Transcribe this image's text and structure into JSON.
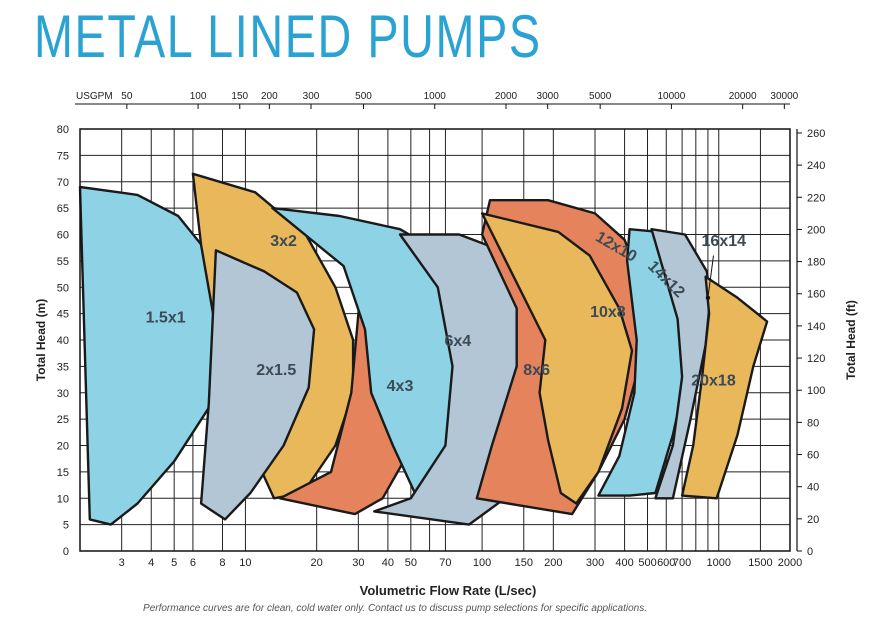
{
  "title": "METAL LINED PUMPS",
  "footnote": "Performance curves are for clean, cold water only. Contact us to discuss pump selections for specific applications.",
  "chart_data": {
    "type": "area",
    "x_scale": "log",
    "xlabel": "Volumetric Flow Rate (L/sec)",
    "ylabel": "Total Head (m)",
    "y2label": "Total Head (ft)",
    "xlim": [
      2,
      2000
    ],
    "ylim": [
      0,
      80
    ],
    "x_ticks": [
      3,
      4,
      5,
      6,
      8,
      10,
      20,
      30,
      40,
      50,
      70,
      100,
      150,
      200,
      300,
      400,
      500,
      600,
      700,
      1000,
      1500,
      2000
    ],
    "y_ticks": [
      0,
      5,
      10,
      15,
      20,
      25,
      30,
      35,
      40,
      45,
      50,
      55,
      60,
      65,
      70,
      75,
      80
    ],
    "top_axis_label": "USGPM",
    "top_ticks": [
      50,
      100,
      150,
      200,
      300,
      500,
      1000,
      2000,
      3000,
      5000,
      10000,
      20000,
      30000
    ],
    "top_ticks_lps_factor": 0.0630902,
    "right_ticks_ft": [
      0,
      20,
      40,
      60,
      80,
      100,
      120,
      140,
      160,
      180,
      200,
      220,
      240,
      260
    ],
    "ft_per_m": 3.28084,
    "colors": {
      "blue": "#8dd3e5",
      "grey": "#b3c6d5",
      "yellow": "#e8b85a",
      "orange": "#e5845c",
      "label": "#3c4a55"
    },
    "series": [
      {
        "name": "1.5x1",
        "color": "blue",
        "label_at": [
          4.6,
          44.5
        ],
        "points": [
          [
            2,
            69
          ],
          [
            3.5,
            67.5
          ],
          [
            5.2,
            63.5
          ],
          [
            6.8,
            57
          ],
          [
            8.6,
            51
          ],
          [
            10.2,
            46
          ],
          [
            9.2,
            38
          ],
          [
            7.2,
            28
          ],
          [
            5.0,
            17
          ],
          [
            3.5,
            9
          ],
          [
            2.7,
            5
          ],
          [
            2.2,
            6
          ],
          [
            2,
            69
          ]
        ]
      },
      {
        "name": "3x2",
        "color": "yellow",
        "label_at": [
          14.5,
          59
        ],
        "points": [
          [
            6,
            71.5
          ],
          [
            11,
            68
          ],
          [
            18,
            60
          ],
          [
            24,
            50
          ],
          [
            28.5,
            40
          ],
          [
            28.5,
            30
          ],
          [
            24,
            20
          ],
          [
            17.5,
            11
          ],
          [
            13.2,
            10
          ],
          [
            10.2,
            21
          ],
          [
            7.7,
            39
          ],
          [
            6.5,
            58
          ],
          [
            6,
            71.5
          ]
        ]
      },
      {
        "name": "2x1.5",
        "color": "grey",
        "label_at": [
          13.5,
          34.5
        ],
        "points": [
          [
            7.5,
            57
          ],
          [
            12,
            53
          ],
          [
            16.5,
            49
          ],
          [
            19.5,
            42
          ],
          [
            18.5,
            31
          ],
          [
            14.5,
            20
          ],
          [
            10.5,
            11
          ],
          [
            8.2,
            6
          ],
          [
            6.5,
            9
          ],
          [
            7.0,
            28
          ],
          [
            7.5,
            57
          ]
        ]
      },
      {
        "name": "4x3",
        "color": "orange",
        "label_at": [
          45,
          31.5
        ],
        "points": [
          [
            31,
            52
          ],
          [
            40,
            50
          ],
          [
            48,
            46.5
          ],
          [
            55,
            41
          ],
          [
            55,
            27
          ],
          [
            48,
            18
          ],
          [
            38,
            10
          ],
          [
            29,
            7
          ],
          [
            14,
            10
          ],
          [
            23,
            15
          ],
          [
            28,
            30
          ],
          [
            31,
            52
          ]
        ]
      },
      {
        "name": "6x4",
        "color": "blue",
        "label_at": [
          79,
          40
        ],
        "points": [
          [
            13,
            65
          ],
          [
            25,
            63.5
          ],
          [
            45,
            61
          ],
          [
            64,
            57
          ],
          [
            85,
            51
          ],
          [
            110,
            42
          ],
          [
            102,
            30
          ],
          [
            88,
            20
          ],
          [
            73,
            10.5
          ],
          [
            52,
            11
          ],
          [
            42,
            20
          ],
          [
            34,
            30
          ],
          [
            32,
            42
          ],
          [
            26,
            54
          ],
          [
            13,
            65
          ]
        ]
      },
      {
        "name": "8x6",
        "color": "grey",
        "label_at": [
          170,
          34.5
        ],
        "points": [
          [
            45,
            60
          ],
          [
            80,
            60
          ],
          [
            120,
            57
          ],
          [
            160,
            52
          ],
          [
            200,
            47
          ],
          [
            230,
            40
          ],
          [
            210,
            30
          ],
          [
            170,
            20
          ],
          [
            125,
            10
          ],
          [
            88,
            5
          ],
          [
            35,
            7.5
          ],
          [
            50,
            10
          ],
          [
            70,
            20
          ],
          [
            75,
            35
          ],
          [
            65,
            50
          ],
          [
            45,
            60
          ]
        ]
      },
      {
        "name": "12x10",
        "color": "orange",
        "label_at": [
          360,
          58
        ],
        "points": [
          [
            108,
            66.5
          ],
          [
            190,
            66.5
          ],
          [
            300,
            64
          ],
          [
            400,
            59
          ],
          [
            490,
            48.5
          ],
          [
            480,
            38
          ],
          [
            400,
            25
          ],
          [
            310,
            15
          ],
          [
            240,
            7
          ],
          [
            95,
            10
          ],
          [
            110,
            20
          ],
          [
            140,
            35
          ],
          [
            140,
            46
          ],
          [
            100,
            60
          ],
          [
            108,
            66.5
          ]
        ]
      },
      {
        "name": "10x8",
        "color": "yellow",
        "label_at": [
          340,
          45.5
        ],
        "points": [
          [
            100,
            64
          ],
          [
            210,
            60.5
          ],
          [
            285,
            56
          ],
          [
            380,
            46
          ],
          [
            430,
            38
          ],
          [
            390,
            27
          ],
          [
            310,
            15
          ],
          [
            250,
            9
          ],
          [
            215,
            11
          ],
          [
            190,
            21
          ],
          [
            175,
            30
          ],
          [
            185,
            40
          ],
          [
            100,
            64
          ]
        ]
      },
      {
        "name": "14x12",
        "color": "blue",
        "label_at": [
          580,
          52
        ],
        "points": [
          [
            420,
            61
          ],
          [
            560,
            60.5
          ],
          [
            700,
            54
          ],
          [
            780,
            45
          ],
          [
            740,
            35
          ],
          [
            640,
            22
          ],
          [
            540,
            11
          ],
          [
            420,
            10.5
          ],
          [
            310,
            10.5
          ],
          [
            380,
            18
          ],
          [
            440,
            30
          ],
          [
            450,
            40
          ],
          [
            410,
            55
          ],
          [
            420,
            61
          ]
        ]
      },
      {
        "name": "16x14",
        "color": "grey",
        "label_at": [
          1050,
          59
        ],
        "points": [
          [
            520,
            61
          ],
          [
            720,
            60
          ],
          [
            890,
            53
          ],
          [
            920,
            48
          ],
          [
            880,
            39
          ],
          [
            760,
            25
          ],
          [
            640,
            10
          ],
          [
            540,
            10
          ],
          [
            640,
            20
          ],
          [
            700,
            33
          ],
          [
            670,
            44
          ],
          [
            520,
            61
          ]
        ]
      },
      {
        "name": "20x18",
        "color": "yellow",
        "label_at": [
          950,
          32.5
        ],
        "points": [
          [
            880,
            52
          ],
          [
            1200,
            48
          ],
          [
            1600,
            43.5
          ],
          [
            1400,
            35
          ],
          [
            1200,
            22
          ],
          [
            980,
            10
          ],
          [
            700,
            10.5
          ],
          [
            780,
            20
          ],
          [
            850,
            33
          ],
          [
            910,
            45
          ],
          [
            880,
            52
          ]
        ]
      }
    ],
    "label_colors": {
      "1.5x1": "#3c4a55",
      "2x1.5": "#3c4a55",
      "3x2": "#3c4a55",
      "4x3": "#3c4a55",
      "6x4": "#3c4a55",
      "8x6": "#3c4a55",
      "10x8": "#3c4a55",
      "12x10": "#3c4a55",
      "14x12": "#3c4a55",
      "16x14": "#3c4a55",
      "20x18": "#3c4a55"
    }
  }
}
